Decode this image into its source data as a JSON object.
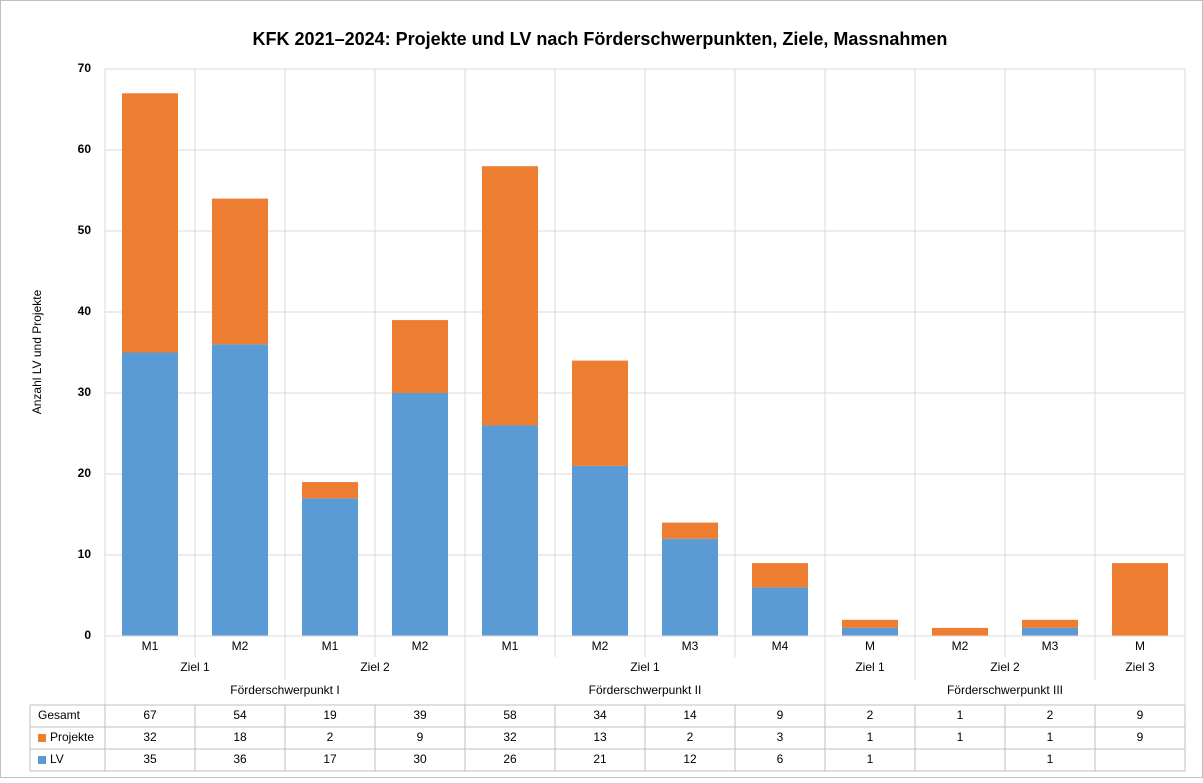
{
  "chart_data": {
    "type": "stacked_bar",
    "title": "KFK 2021–2024: Projekte und LV nach Förderschwerpunkten, Ziele, Massnahmen",
    "y_label": "Anzahl LV und Projekte",
    "categories": [
      "M1",
      "M2",
      "M1",
      "M2",
      "M1",
      "M2",
      "M3",
      "M4",
      "M",
      "M2",
      "M3",
      "M"
    ],
    "ziele": [
      "Ziel 1",
      "Ziel 1",
      "Ziel 2",
      "Ziel 2",
      "Ziel 1",
      "Ziel 1",
      "Ziel 1",
      "Ziel 1",
      "Ziel 1",
      "Ziel 2",
      "Ziel 2",
      "Ziel 3"
    ],
    "schwerpunkte": [
      "Förderschwerpunkt I",
      "Förderschwerpunkt I",
      "Förderschwerpunkt I",
      "Förderschwerpunkt I",
      "Förderschwerpunkt II",
      "Förderschwerpunkt II",
      "Förderschwerpunkt II",
      "Förderschwerpunkt II",
      "Förderschwerpunkt III",
      "Förderschwerpunkt III",
      "Förderschwerpunkt III",
      "Förderschwerpunkt III"
    ],
    "series": [
      {
        "name": "LV",
        "color": "#5b9bd5",
        "values": [
          35,
          36,
          17,
          30,
          26,
          21,
          12,
          6,
          1,
          null,
          1,
          null
        ]
      },
      {
        "name": "Projekte",
        "color": "#ed7d31",
        "values": [
          32,
          18,
          2,
          9,
          32,
          13,
          2,
          3,
          1,
          1,
          1,
          9
        ]
      }
    ],
    "total": {
      "name": "Gesamt",
      "values": [
        67,
        54,
        19,
        39,
        58,
        34,
        14,
        9,
        2,
        1,
        2,
        9
      ]
    },
    "ylim": [
      0,
      70
    ],
    "yticks": [
      0,
      10,
      20,
      30,
      40,
      50,
      60,
      70
    ],
    "grid": true
  }
}
